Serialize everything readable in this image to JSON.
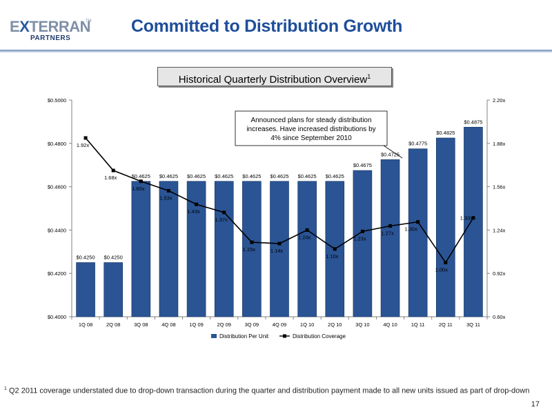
{
  "header": {
    "logo_word_left": "E",
    "logo_word_x": "X",
    "logo_word_right": "TERRAN",
    "logo_tm": "TM",
    "logo_sub": "PARTNERS",
    "title": "Committed to Distribution Growth"
  },
  "subtitle": {
    "text": "Historical Quarterly Distribution Overview",
    "sup": "1"
  },
  "callout": {
    "lines": [
      "Announced plans for steady distribution",
      "increases. Have increased distributions by",
      "4% since September 2010"
    ]
  },
  "footnote": {
    "sup": "1",
    "text": "Q2 2011 coverage understated due to drop-down transaction during the quarter and distribution payment made to all new units issued as part of drop-down"
  },
  "page_number": "17",
  "colors": {
    "bar": "#2a5494",
    "bar_edge": "#16335f",
    "line": "#000000",
    "title": "#1f4e9a"
  },
  "chart_data": {
    "type": "bar",
    "categories": [
      "1Q 08",
      "2Q 08",
      "3Q 08",
      "4Q 08",
      "1Q 09",
      "2Q 09",
      "3Q 09",
      "4Q 09",
      "1Q 10",
      "2Q 10",
      "3Q 10",
      "4Q 10",
      "1Q 11",
      "2Q 11",
      "3Q 11"
    ],
    "series": [
      {
        "name": "Distribution Per Unit",
        "type": "bar",
        "axis": "left",
        "values": [
          0.425,
          0.425,
          0.4625,
          0.4625,
          0.4625,
          0.4625,
          0.4625,
          0.4625,
          0.4625,
          0.4625,
          0.4675,
          0.4725,
          0.4775,
          0.4825,
          0.4875
        ],
        "labels": [
          "$0.4250",
          "$0.4250",
          "$0.4625",
          "$0.4625",
          "$0.4625",
          "$0.4625",
          "$0.4625",
          "$0.4625",
          "$0.4625",
          "$0.4625",
          "$0.4675",
          "$0.4725",
          "$0.4775",
          "$0.4825",
          "$0.4875"
        ]
      },
      {
        "name": "Distribution Coverage",
        "type": "line",
        "axis": "right",
        "values": [
          1.92,
          1.68,
          1.6,
          1.53,
          1.43,
          1.37,
          1.15,
          1.14,
          1.24,
          1.1,
          1.23,
          1.27,
          1.3,
          1.0,
          1.33
        ],
        "labels": [
          "1.92x",
          "1.68x",
          "1.60x",
          "1.53x",
          "1.43x",
          "1.37x",
          "1.15x",
          "1.14x",
          "1.24x",
          "1.10x",
          "1.23x",
          "1.27x",
          "1.30x",
          "1.00x",
          "1.33x"
        ]
      }
    ],
    "y_left": {
      "min": 0.4,
      "max": 0.5,
      "ticks": [
        "$0.4000",
        "$0.4200",
        "$0.4400",
        "$0.4600",
        "$0.4800",
        "$0.5000"
      ]
    },
    "y_right": {
      "min": 0.6,
      "max": 2.2,
      "ticks": [
        "0.60x",
        "0.92x",
        "1.24x",
        "1.56x",
        "1.88x",
        "2.20x"
      ]
    },
    "grid": false,
    "legend_position": "bottom"
  }
}
